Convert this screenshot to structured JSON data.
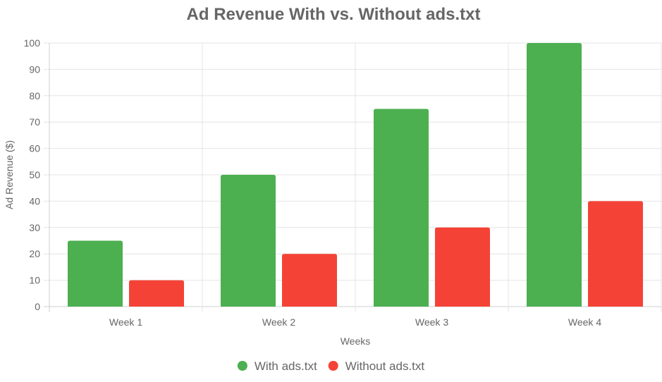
{
  "chart_data": {
    "type": "bar",
    "title": "Ad Revenue With vs. Without ads.txt",
    "xlabel": "Weeks",
    "ylabel": "Ad Revenue ($)",
    "categories": [
      "Week 1",
      "Week 2",
      "Week 3",
      "Week 4"
    ],
    "series": [
      {
        "name": "With ads.txt",
        "color": "#4caf50",
        "values": [
          25,
          50,
          75,
          100
        ]
      },
      {
        "name": "Without ads.txt",
        "color": "#f44336",
        "values": [
          10,
          20,
          30,
          40
        ]
      }
    ],
    "ylim": [
      0,
      100
    ],
    "yticks": [
      0,
      10,
      20,
      30,
      40,
      50,
      60,
      70,
      80,
      90,
      100
    ],
    "grid": true,
    "legend_position": "bottom"
  }
}
